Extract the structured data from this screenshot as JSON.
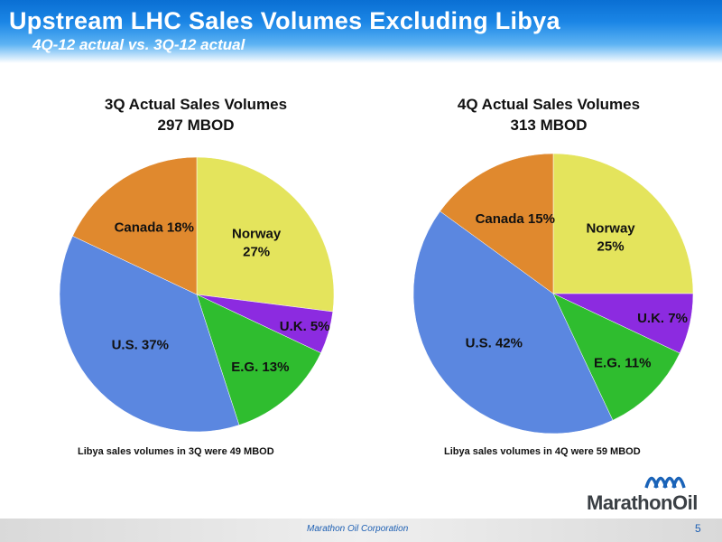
{
  "header": {
    "title": "Upstream LHC Sales Volumes Excluding Libya",
    "subtitle": "4Q-12 actual vs. 3Q-12 actual"
  },
  "chart_data": [
    {
      "type": "pie",
      "title": "3Q Actual Sales Volumes",
      "subtitle": "297 MBOD",
      "categories": [
        "Norway",
        "U.K.",
        "E.G.",
        "U.S.",
        "Canada"
      ],
      "values": [
        27,
        5,
        13,
        37,
        18
      ],
      "labels": [
        "Norway 27%",
        "U.K. 5%",
        "E.G. 13%",
        "U.S. 37%",
        "Canada 18%"
      ],
      "colors": [
        "#e4e45c",
        "#8c2be0",
        "#2fbd2f",
        "#5b87e0",
        "#e0892e"
      ],
      "footnote": "Libya sales volumes in 3Q were 49 MBOD"
    },
    {
      "type": "pie",
      "title": "4Q Actual Sales Volumes",
      "subtitle": "313 MBOD",
      "categories": [
        "Norway",
        "U.K.",
        "E.G.",
        "U.S.",
        "Canada"
      ],
      "values": [
        25,
        7,
        11,
        42,
        15
      ],
      "labels": [
        "Norway 25%",
        "U.K. 7%",
        "E.G. 11%",
        "U.S. 42%",
        "Canada 15%"
      ],
      "colors": [
        "#e4e45c",
        "#8c2be0",
        "#2fbd2f",
        "#5b87e0",
        "#e0892e"
      ],
      "footnote": "Libya sales volumes in 4Q were 59 MBOD"
    }
  ],
  "logo": {
    "text": "MarathonOil",
    "icon": "marathon-waves-icon"
  },
  "footer": {
    "company": "Marathon Oil Corporation",
    "page": "5"
  }
}
